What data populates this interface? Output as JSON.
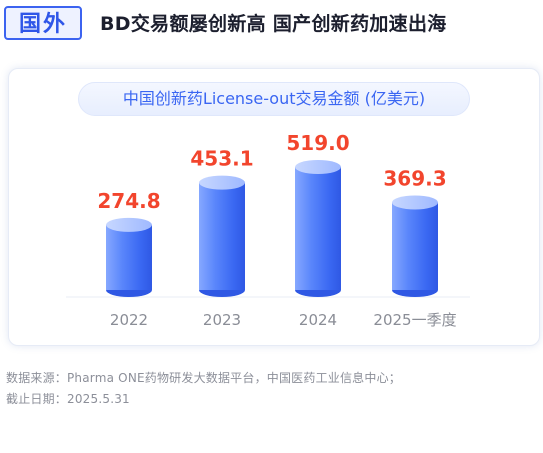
{
  "tag": {
    "label": "国外"
  },
  "headline": "BD交易额屡创新高 国产创新药加速出海",
  "chart_data": {
    "type": "bar",
    "title": "中国创新药License-out交易金额 (亿美元)",
    "categories": [
      "2022",
      "2023",
      "2024",
      "2025一季度"
    ],
    "values": [
      274.8,
      453.1,
      519.0,
      369.3
    ],
    "value_labels": [
      "274.8",
      "453.1",
      "519.0",
      "369.3"
    ],
    "ylim": [
      0,
      519.0
    ],
    "grid": false,
    "colors": {
      "bar": "#3f6ef6",
      "bar_light": "#8fb0ff",
      "value_label": "#f2452d",
      "tick_label": "#8a8d96"
    }
  },
  "source": {
    "line1": "数据来源：Pharma ONE药物研发大数据平台，中国医药工业信息中心；",
    "line2": "截止日期：2025.5.31"
  }
}
